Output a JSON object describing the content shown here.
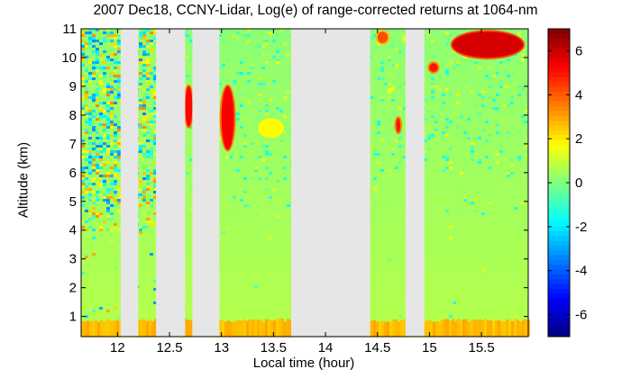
{
  "chart_data": {
    "type": "heatmap",
    "title": "2007 Dec18, CCNY-Lidar, Log(e) of range-corrected returns at 1064-nm",
    "xlabel": "Local time (hour)",
    "ylabel": "Altitude (km)",
    "xlim": [
      11.65,
      15.95
    ],
    "ylim": [
      0.3,
      11
    ],
    "x_ticks": [
      12,
      12.5,
      13,
      13.5,
      14,
      14.5,
      15,
      15.5
    ],
    "x_tick_labels": [
      "12",
      "12.5",
      "13",
      "13.5",
      "14",
      "14.5",
      "15",
      "15.5"
    ],
    "y_ticks": [
      1,
      2,
      3,
      4,
      5,
      6,
      7,
      8,
      9,
      10,
      11
    ],
    "y_tick_labels": [
      "1",
      "2",
      "3",
      "4",
      "5",
      "6",
      "7",
      "8",
      "9",
      "10",
      "11"
    ],
    "colorbar": {
      "range": [
        -7,
        7
      ],
      "ticks": [
        -6,
        -4,
        -2,
        0,
        2,
        4,
        6
      ],
      "tick_labels": [
        "-6",
        "-4",
        "-2",
        "0",
        "2",
        "4",
        "6"
      ],
      "colormap": "jet"
    },
    "data_gaps": [
      {
        "start": 12.03,
        "end": 12.2
      },
      {
        "start": 12.37,
        "end": 12.65
      },
      {
        "start": 12.72,
        "end": 12.98
      },
      {
        "start": 13.67,
        "end": 14.43
      },
      {
        "start": 14.77,
        "end": 14.95
      }
    ],
    "features": [
      {
        "kind": "boundary-layer",
        "value": 3.0,
        "alt_range": [
          0.3,
          0.8
        ]
      },
      {
        "kind": "cloud",
        "value": 5.2,
        "time_range": [
          12.65,
          12.72
        ],
        "alt_range": [
          7.6,
          9.0
        ]
      },
      {
        "kind": "cloud",
        "value": 5.3,
        "time_range": [
          13.0,
          13.12
        ],
        "alt_range": [
          6.8,
          9.0
        ]
      },
      {
        "kind": "aerosol",
        "value": 1.8,
        "time_range": [
          13.35,
          13.6
        ],
        "alt_range": [
          7.2,
          7.9
        ]
      },
      {
        "kind": "cloud",
        "value": 4.2,
        "time_range": [
          14.5,
          14.6
        ],
        "alt_range": [
          10.5,
          10.9
        ]
      },
      {
        "kind": "cloud",
        "value": 5.0,
        "time_range": [
          14.68,
          14.72
        ],
        "alt_range": [
          7.4,
          7.9
        ]
      },
      {
        "kind": "cloud",
        "value": 5.0,
        "time_range": [
          15.0,
          15.08
        ],
        "alt_range": [
          9.5,
          9.8
        ]
      },
      {
        "kind": "cloud",
        "value": 5.8,
        "time_range": [
          15.22,
          15.9
        ],
        "alt_range": [
          10.0,
          10.9
        ]
      }
    ]
  }
}
